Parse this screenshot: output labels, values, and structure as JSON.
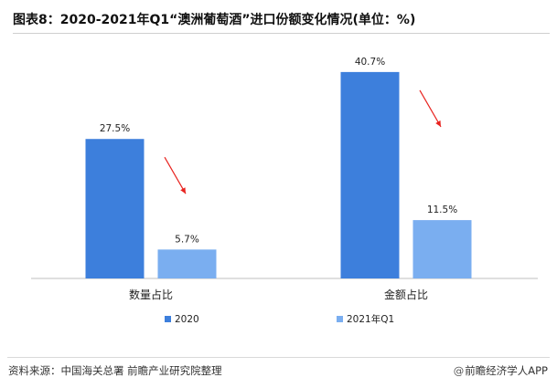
{
  "title": "图表8：2020-2021年Q1“澳洲葡萄酒”进口份额变化情况(单位：%)",
  "source": "资料来源：中国海关总署 前瞻产业研究院整理",
  "brand": "前瞻经济学人APP",
  "colors": {
    "series_2020": "#3d7fdc",
    "series_2021q1": "#7aaef0",
    "arrow": "#e8231f"
  },
  "chart_data": {
    "type": "bar",
    "title": "图表8：2020-2021年Q1“澳洲葡萄酒”进口份额变化情况(单位：%)",
    "categories": [
      "数量占比",
      "金额占比"
    ],
    "series": [
      {
        "name": "2020",
        "values": [
          27.5,
          40.7
        ],
        "labels": [
          "27.5%",
          "40.7%"
        ]
      },
      {
        "name": "2021年Q1",
        "values": [
          5.7,
          11.5
        ],
        "labels": [
          "5.7%",
          "11.5%"
        ]
      }
    ],
    "xlabel": "",
    "ylabel": "",
    "ylim": [
      0,
      45
    ],
    "grid": false,
    "legend_position": "bottom"
  }
}
